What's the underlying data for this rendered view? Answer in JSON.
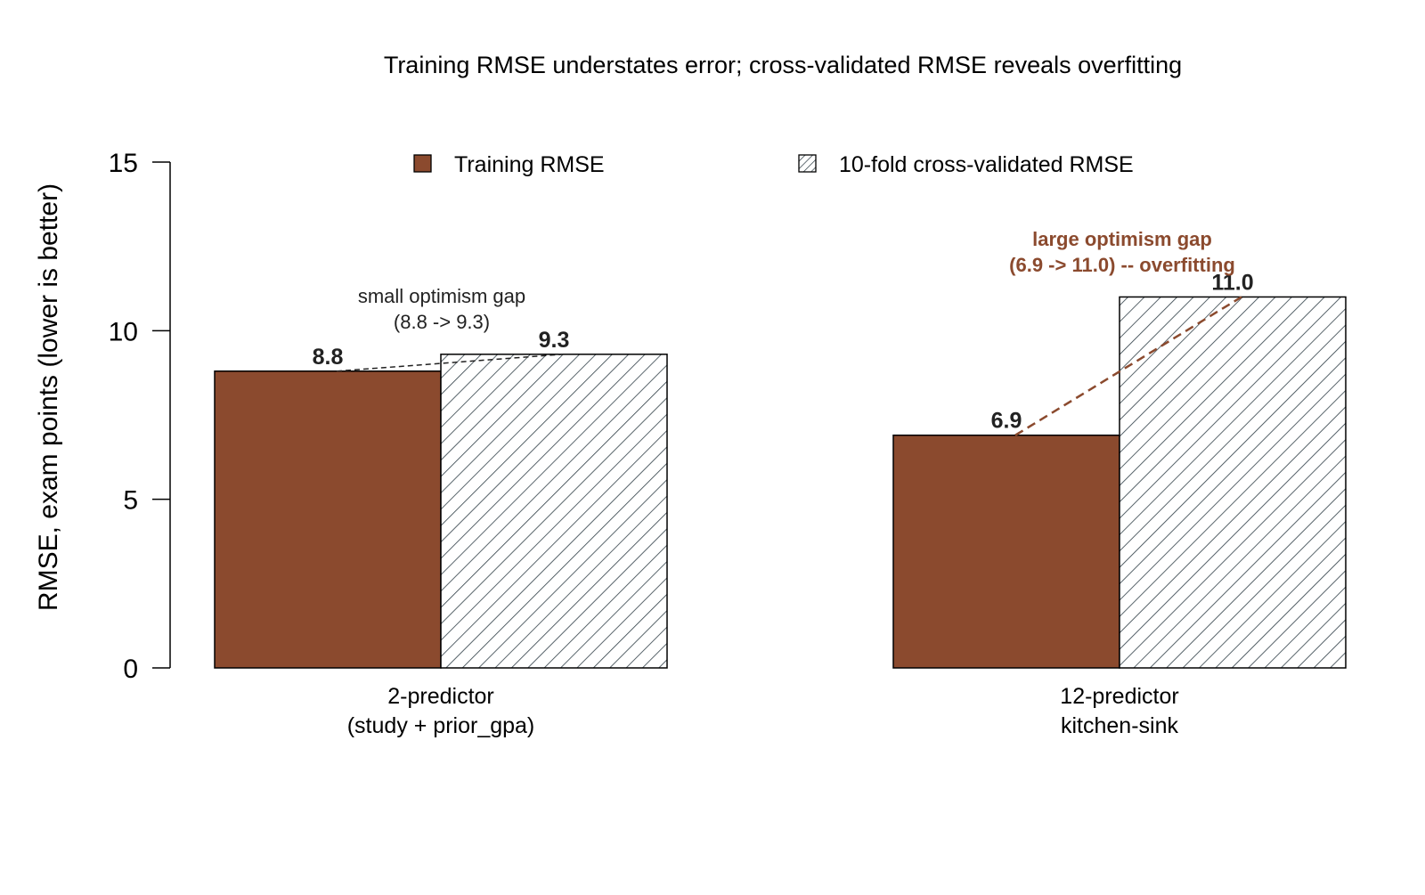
{
  "chart_data": {
    "type": "bar",
    "title": "Training RMSE understates error; cross-validated RMSE reveals overfitting",
    "ylabel": "RMSE, exam points (lower is better)",
    "xlabel": "",
    "ylim": [
      0,
      15
    ],
    "yticks": [
      "0",
      "5",
      "10",
      "15"
    ],
    "categories": [
      [
        "2-predictor",
        "(study + prior_gpa)"
      ],
      [
        "12-predictor",
        "kitchen-sink"
      ]
    ],
    "series": [
      {
        "name": "Training RMSE",
        "values": [
          8.8,
          6.9
        ],
        "labels": [
          "8.8",
          "6.9"
        ],
        "color": "#8B4A2E",
        "pattern": "solid"
      },
      {
        "name": "10-fold cross-validated RMSE",
        "values": [
          9.3,
          11.0
        ],
        "labels": [
          "9.3",
          "11.0"
        ],
        "color": "#2F3E46",
        "pattern": "hatch"
      }
    ],
    "legend_position": "top",
    "grid": false,
    "annotations": [
      {
        "lines": [
          "small optimism gap",
          "(8.8 -> 9.3)"
        ],
        "group": 0,
        "color": "#222222",
        "bold": false
      },
      {
        "lines": [
          "large optimism gap",
          "(6.9 -> 11.0) -- overfitting"
        ],
        "group": 1,
        "color": "#8B4A2E",
        "bold": true
      }
    ]
  }
}
